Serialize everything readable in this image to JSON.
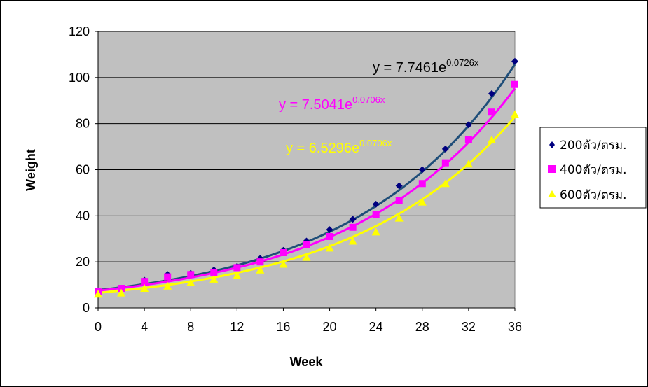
{
  "chart_data": {
    "type": "scatter",
    "title": "",
    "xlabel": "Week",
    "ylabel": "Weight",
    "xlim": [
      0,
      36
    ],
    "ylim": [
      0,
      120
    ],
    "xticks": [
      "0",
      "4",
      "8",
      "12",
      "16",
      "20",
      "24",
      "28",
      "32",
      "36"
    ],
    "yticks": [
      "0",
      "20",
      "40",
      "60",
      "80",
      "100",
      "120"
    ],
    "grid": "horizontal",
    "background": "#c0c0c0",
    "legend_position": "right",
    "series": [
      {
        "name": "200ตัว/ตรม.",
        "marker": "diamond",
        "color": "#000080",
        "trend_color": "#1f4e79",
        "x": [
          0,
          2,
          4,
          6,
          8,
          10,
          12,
          14,
          16,
          18,
          20,
          22,
          24,
          26,
          28,
          30,
          32,
          34,
          36
        ],
        "y": [
          7.5,
          8.5,
          12,
          14.5,
          15,
          16.5,
          18,
          21.5,
          25,
          29,
          34,
          38.5,
          45,
          53,
          60,
          69,
          79.5,
          93,
          107
        ],
        "trendline": {
          "a": 7.7461,
          "b": 0.0726,
          "label": "y = 7.7461e",
          "exp": "0.0726x"
        }
      },
      {
        "name": "400ตัว/ตรม.",
        "marker": "square",
        "color": "#ff00ff",
        "trend_color": "#ff00ff",
        "x": [
          0,
          2,
          4,
          6,
          8,
          10,
          12,
          14,
          16,
          18,
          20,
          22,
          24,
          26,
          28,
          30,
          32,
          34,
          36
        ],
        "y": [
          7,
          8.5,
          11.5,
          13.5,
          14.5,
          15.5,
          17.5,
          20,
          24,
          27.5,
          31,
          35,
          40.5,
          46.5,
          54,
          63,
          73,
          85,
          97
        ],
        "trendline": {
          "a": 7.5041,
          "b": 0.0706,
          "label": "y = 7.5041e",
          "exp": "0.0706x"
        }
      },
      {
        "name": "600ตัว/ตรม.",
        "marker": "triangle",
        "color": "#ffff00",
        "trend_color": "#ffff00",
        "x": [
          0,
          2,
          4,
          6,
          8,
          10,
          12,
          14,
          16,
          18,
          20,
          22,
          24,
          26,
          28,
          30,
          32,
          34,
          36
        ],
        "y": [
          6,
          6.5,
          8.5,
          9.5,
          11,
          12.5,
          14,
          16.5,
          19,
          22,
          26,
          29,
          33,
          39,
          46,
          54,
          62.5,
          73,
          84
        ],
        "trendline": {
          "a": 6.5296,
          "b": 0.0706,
          "label": "y = 6.5296e",
          "exp": "0.0706x"
        }
      }
    ]
  }
}
